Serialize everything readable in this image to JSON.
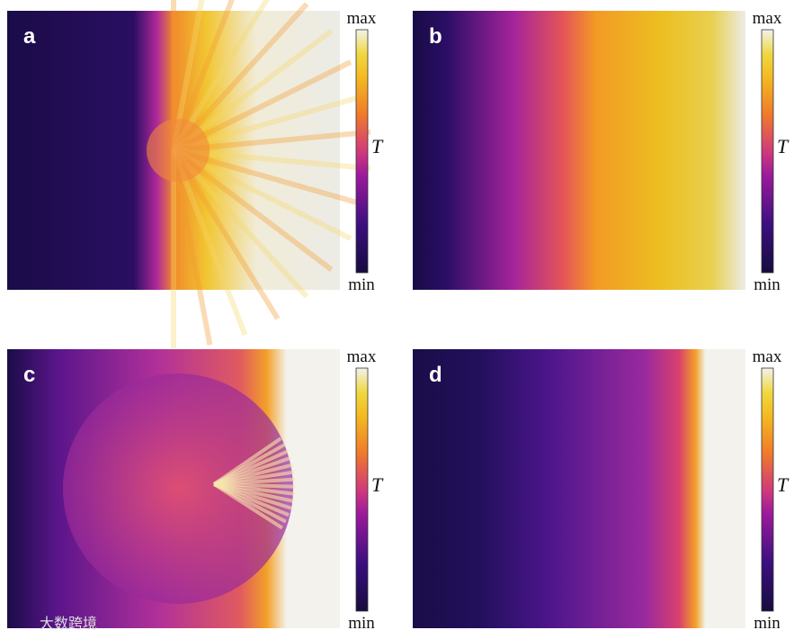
{
  "panels": [
    {
      "label": "a",
      "colorbar": {
        "max": "max",
        "quantity": "T",
        "min": "min"
      }
    },
    {
      "label": "b",
      "colorbar": {
        "max": "max",
        "quantity": "T",
        "min": "min"
      }
    },
    {
      "label": "c",
      "colorbar": {
        "max": "max",
        "quantity": "T",
        "min": "min"
      }
    },
    {
      "label": "d",
      "colorbar": {
        "max": "max",
        "quantity": "T",
        "min": "min"
      }
    }
  ],
  "watermark": "大数跨境"
}
